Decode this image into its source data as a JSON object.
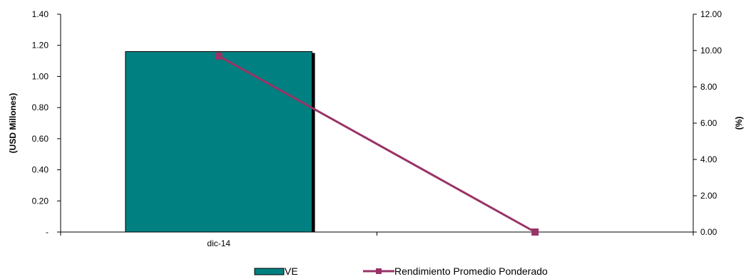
{
  "chart_data": {
    "type": "bar+line",
    "categories": [
      "dic-14",
      ""
    ],
    "series": [
      {
        "name": "VE",
        "type": "bar",
        "axis": "left",
        "values": [
          1.16,
          null
        ],
        "color": "#008080"
      },
      {
        "name": "Rendimiento Promedio Ponderado",
        "type": "line",
        "axis": "right",
        "values": [
          9.7,
          0.0
        ],
        "color": "#993366"
      }
    ],
    "y_left": {
      "label": "(USD Millones)",
      "range": [
        0,
        1.4
      ],
      "ticks": [
        0,
        0.2,
        0.4,
        0.6,
        0.8,
        1.0,
        1.2,
        1.4
      ],
      "tick_labels": [
        "-",
        "0.20",
        "0.40",
        "0.60",
        "0.80",
        "1.00",
        "1.20",
        "1.40"
      ]
    },
    "y_right": {
      "label": "(%)",
      "range": [
        0,
        12
      ],
      "ticks": [
        0,
        2,
        4,
        6,
        8,
        10,
        12
      ],
      "tick_labels": [
        "0.00",
        "2.00",
        "4.00",
        "6.00",
        "8.00",
        "10.00",
        "12.00"
      ]
    },
    "grid": false,
    "legend_position": "bottom"
  }
}
